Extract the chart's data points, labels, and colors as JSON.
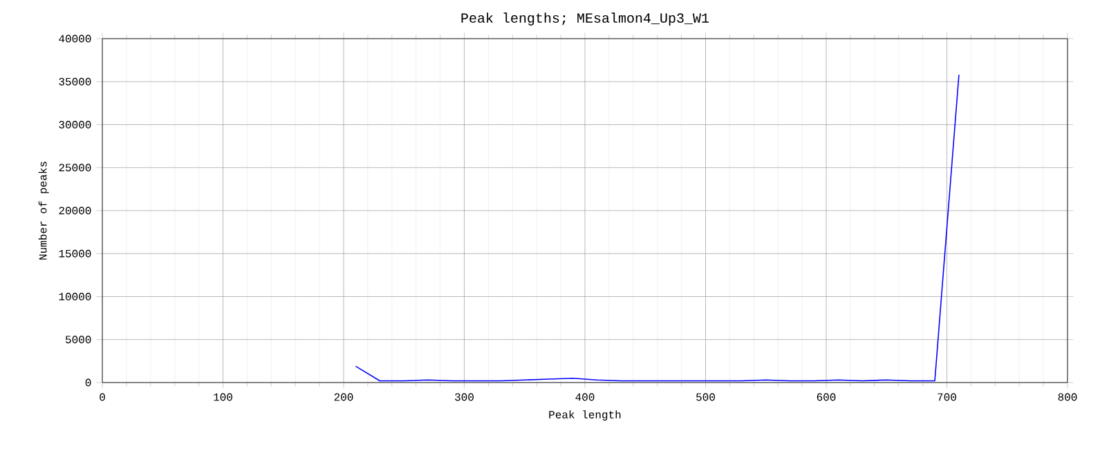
{
  "chart_data": {
    "type": "line",
    "title": "Peak lengths; MEsalmon4_Up3_W1",
    "xlabel": "Peak length",
    "ylabel": "Number of peaks",
    "xlim": [
      0,
      800
    ],
    "xticks": [
      0,
      100,
      200,
      300,
      400,
      500,
      600,
      700,
      800
    ],
    "ylim": [
      0,
      40000
    ],
    "yticks": [
      0,
      5000,
      10000,
      15000,
      20000,
      25000,
      30000,
      35000,
      40000
    ],
    "grid": true,
    "series": [
      {
        "color": "#0000ff",
        "x": [
          210,
          230,
          250,
          270,
          290,
          310,
          330,
          350,
          370,
          390,
          410,
          430,
          450,
          470,
          490,
          510,
          530,
          550,
          570,
          590,
          610,
          630,
          650,
          670,
          690,
          710
        ],
        "values": [
          1900,
          200,
          200,
          300,
          200,
          200,
          200,
          300,
          400,
          500,
          300,
          200,
          200,
          200,
          200,
          200,
          200,
          300,
          200,
          200,
          300,
          200,
          300,
          200,
          200,
          35800
        ]
      }
    ]
  }
}
